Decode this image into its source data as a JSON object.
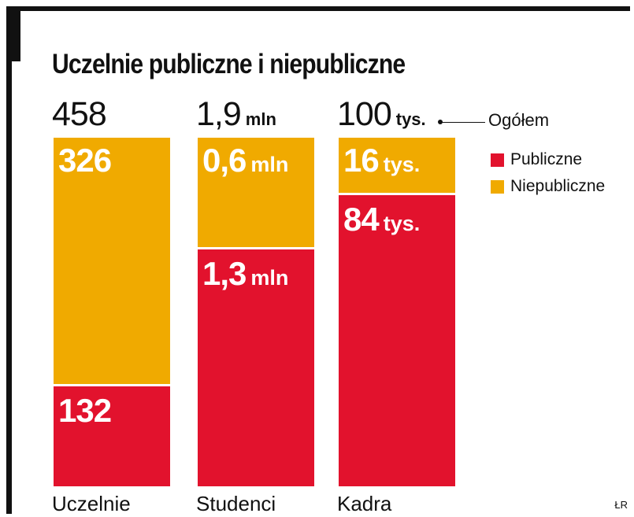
{
  "chart_data": {
    "type": "bar",
    "stacked": true,
    "title": "Uczelnie publiczne i niepubliczne",
    "categories": [
      "Uczelnie",
      "Studenci",
      "Kadra"
    ],
    "series": [
      {
        "name": "Publiczne",
        "color": "#e2122d",
        "values": [
          132,
          1.3,
          84
        ],
        "labels": [
          "132",
          "1,3",
          "84"
        ],
        "units": [
          "",
          "mln",
          "tys."
        ]
      },
      {
        "name": "Niepubliczne",
        "color": "#f0aa00",
        "values": [
          326,
          0.6,
          16
        ],
        "labels": [
          "326",
          "0,6",
          "16"
        ],
        "units": [
          "",
          "mln",
          "tys."
        ]
      }
    ],
    "totals": [
      {
        "label": "458",
        "unit": ""
      },
      {
        "label": "1,9",
        "unit": "mln"
      },
      {
        "label": "100",
        "unit": "tys."
      }
    ],
    "totals_label": "Ogółem",
    "legend": [
      "Publiczne",
      "Niepubliczne"
    ],
    "legend_position": "right",
    "credit": "ŁR"
  }
}
